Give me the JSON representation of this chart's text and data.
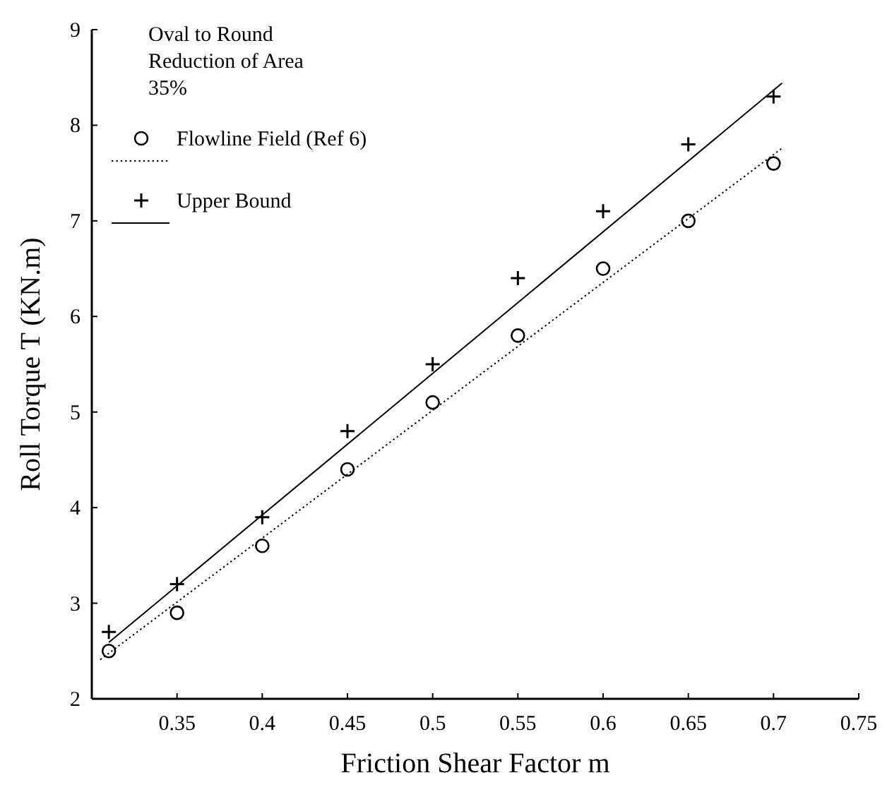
{
  "chart_data": {
    "type": "scatter",
    "xlabel": "Friction Shear Factor m",
    "ylabel": "Roll Torque T (KN.m)",
    "annotations": [
      "Oval to Round\nReduction of Area\n35%"
    ],
    "xlim": [
      0.3,
      0.75
    ],
    "xticks": [
      0.35,
      0.4,
      0.45,
      0.5,
      0.55,
      0.6,
      0.65,
      0.7,
      0.75
    ],
    "ylim": [
      2,
      9
    ],
    "yticks": [
      2,
      3,
      4,
      5,
      6,
      7,
      8,
      9
    ],
    "grid": false,
    "legend": "top left",
    "series": [
      {
        "name": "Flowline Field (Ref 6)",
        "marker": "circle",
        "color": "#000000",
        "x": [
          0.31,
          0.35,
          0.4,
          0.45,
          0.5,
          0.55,
          0.6,
          0.65,
          0.7
        ],
        "values": [
          2.5,
          2.9,
          3.6,
          4.4,
          5.1,
          5.8,
          6.5,
          7.0,
          7.6
        ]
      },
      {
        "type": "line",
        "line_style": "dotted",
        "color": "#000000",
        "x": [
          0.305,
          0.705
        ],
        "values": [
          2.41,
          7.76
        ]
      },
      {
        "name": "Upper Bound",
        "marker": "cross",
        "color": "#000000",
        "x": [
          0.31,
          0.35,
          0.4,
          0.45,
          0.5,
          0.55,
          0.6,
          0.65,
          0.7
        ],
        "values": [
          2.7,
          3.2,
          3.9,
          4.8,
          5.5,
          6.4,
          7.1,
          7.8,
          8.3
        ]
      },
      {
        "type": "line",
        "line_style": "solid",
        "color": "#000000",
        "x": [
          0.31,
          0.705
        ],
        "values": [
          2.59,
          8.44
        ]
      }
    ]
  }
}
